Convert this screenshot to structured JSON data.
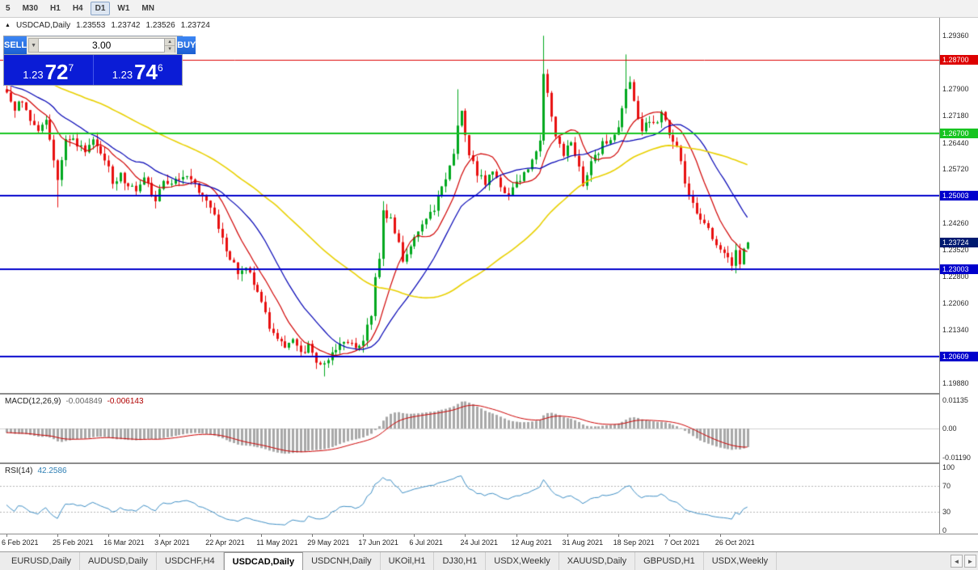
{
  "toolbar": {
    "timeframes": [
      "5",
      "M30",
      "H1",
      "H4",
      "D1",
      "W1",
      "MN"
    ],
    "active": "D1"
  },
  "chart": {
    "symbol_line": {
      "symbol": "USDCAD,Daily",
      "open": "1.23553",
      "high": "1.23742",
      "low": "1.23526",
      "close": "1.23724"
    },
    "trade_panel": {
      "sell_label": "SELL",
      "buy_label": "BUY",
      "volume": "3.00",
      "sell_price": {
        "small": "1.23",
        "big": "72",
        "sup": "7"
      },
      "buy_price": {
        "small": "1.23",
        "big": "74",
        "sup": "6"
      }
    }
  },
  "indicators": {
    "macd": {
      "label": "MACD(12,26,9)",
      "value_main": "-0.004849",
      "value_signal": "-0.006143",
      "axis_labels": [
        "0.01135",
        "0.00",
        "-0.01190"
      ]
    },
    "rsi": {
      "label": "RSI(14)",
      "value": "42.2586",
      "axis_labels": [
        "100",
        "70",
        "30",
        "0"
      ],
      "levels": [
        70,
        30
      ]
    }
  },
  "chart_data": {
    "type": "candlestick",
    "symbol": "USDCAD",
    "timeframe": "Daily",
    "visible_ohlc": {
      "open": 1.23553,
      "high": 1.23742,
      "low": 1.23526,
      "close": 1.23724
    },
    "n_candles": 190,
    "first_open": 1.279,
    "last_close": 1.23724,
    "pre_trend": {
      "start": 1.292,
      "end": 1.2785,
      "count": 60
    },
    "price_anchors": [
      [
        0,
        1.2775
      ],
      [
        2,
        1.274
      ],
      [
        4,
        1.2755
      ],
      [
        6,
        1.27
      ],
      [
        8,
        1.2668
      ],
      [
        10,
        1.27
      ],
      [
        11,
        1.2645
      ],
      [
        12,
        1.259
      ],
      [
        13,
        1.2545
      ],
      [
        14,
        1.2605
      ],
      [
        15,
        1.265
      ],
      [
        16,
        1.2662
      ],
      [
        18,
        1.2645
      ],
      [
        20,
        1.2608
      ],
      [
        22,
        1.2648
      ],
      [
        24,
        1.2615
      ],
      [
        26,
        1.2575
      ],
      [
        27,
        1.2535
      ],
      [
        29,
        1.2555
      ],
      [
        31,
        1.2528
      ],
      [
        33,
        1.2512
      ],
      [
        35,
        1.2545
      ],
      [
        37,
        1.2505
      ],
      [
        38,
        1.2478
      ],
      [
        40,
        1.2548
      ],
      [
        42,
        1.2535
      ],
      [
        44,
        1.2555
      ],
      [
        46,
        1.2562
      ],
      [
        48,
        1.253
      ],
      [
        50,
        1.2498
      ],
      [
        52,
        1.2478
      ],
      [
        53,
        1.2455
      ],
      [
        55,
        1.2385
      ],
      [
        57,
        1.2322
      ],
      [
        59,
        1.2295
      ],
      [
        61,
        1.2312
      ],
      [
        63,
        1.2255
      ],
      [
        65,
        1.2205
      ],
      [
        67,
        1.2138
      ],
      [
        69,
        1.2118
      ],
      [
        71,
        1.2092
      ],
      [
        73,
        1.2108
      ],
      [
        75,
        1.2068
      ],
      [
        77,
        1.2085
      ],
      [
        79,
        1.2055
      ],
      [
        81,
        1.2032
      ],
      [
        83,
        1.2062
      ],
      [
        85,
        1.2088
      ],
      [
        87,
        1.2108
      ],
      [
        89,
        1.2082
      ],
      [
        91,
        1.21
      ],
      [
        93,
        1.2175
      ],
      [
        94,
        1.2275
      ],
      [
        95,
        1.233
      ],
      [
        96,
        1.2455
      ],
      [
        98,
        1.2432
      ],
      [
        100,
        1.2372
      ],
      [
        101,
        1.2318
      ],
      [
        103,
        1.236
      ],
      [
        105,
        1.2398
      ],
      [
        107,
        1.2432
      ],
      [
        109,
        1.2465
      ],
      [
        111,
        1.253
      ],
      [
        113,
        1.2575
      ],
      [
        114,
        1.2618
      ],
      [
        115,
        1.2688
      ],
      [
        116,
        1.2725
      ],
      [
        117,
        1.2655
      ],
      [
        118,
        1.2612
      ],
      [
        120,
        1.2562
      ],
      [
        122,
        1.2535
      ],
      [
        124,
        1.2572
      ],
      [
        126,
        1.2525
      ],
      [
        128,
        1.2502
      ],
      [
        130,
        1.2535
      ],
      [
        132,
        1.2562
      ],
      [
        134,
        1.2598
      ],
      [
        136,
        1.265
      ],
      [
        137,
        1.2822
      ],
      [
        138,
        1.2788
      ],
      [
        139,
        1.2715
      ],
      [
        140,
        1.2655
      ],
      [
        142,
        1.2612
      ],
      [
        144,
        1.2642
      ],
      [
        146,
        1.2585
      ],
      [
        147,
        1.2535
      ],
      [
        148,
        1.2565
      ],
      [
        150,
        1.2605
      ],
      [
        152,
        1.2638
      ],
      [
        154,
        1.2662
      ],
      [
        156,
        1.2692
      ],
      [
        158,
        1.2782
      ],
      [
        159,
        1.2808
      ],
      [
        160,
        1.2748
      ],
      [
        161,
        1.2702
      ],
      [
        162,
        1.2665
      ],
      [
        163,
        1.2705
      ],
      [
        165,
        1.2692
      ],
      [
        167,
        1.2722
      ],
      [
        169,
        1.2672
      ],
      [
        171,
        1.2635
      ],
      [
        172,
        1.2592
      ],
      [
        174,
        1.2492
      ],
      [
        176,
        1.2462
      ],
      [
        178,
        1.2422
      ],
      [
        180,
        1.2382
      ],
      [
        182,
        1.2352
      ],
      [
        184,
        1.2332
      ],
      [
        185,
        1.2312
      ],
      [
        186,
        1.2342
      ],
      [
        187,
        1.2322
      ],
      [
        188,
        1.23553
      ],
      [
        189,
        1.23724
      ]
    ],
    "wick_overrides": [
      {
        "i": 13,
        "low": 1.2468
      },
      {
        "i": 38,
        "low": 1.2465
      },
      {
        "i": 81,
        "low": 1.2007
      },
      {
        "i": 96,
        "high": 1.2485
      },
      {
        "i": 115,
        "high": 1.279
      },
      {
        "i": 137,
        "high": 1.2936
      },
      {
        "i": 158,
        "high": 1.2885
      },
      {
        "i": 186,
        "low": 1.2288
      },
      {
        "i": 189,
        "high": 1.23742,
        "low": 1.23526
      }
    ],
    "y_axis": {
      "max": 1.2985,
      "min": 1.1962,
      "tick_labels": [
        "1.29360",
        "1.28640",
        "1.27900",
        "1.27180",
        "1.26440",
        "1.25720",
        "1.25000",
        "1.24260",
        "1.23520",
        "1.22800",
        "1.22060",
        "1.21340",
        "1.20600",
        "1.19880"
      ]
    },
    "h_lines": [
      {
        "price": 1.287,
        "label": "1.28700",
        "color": "#dd0000",
        "width": 1
      },
      {
        "price": 1.267,
        "label": "1.26700",
        "color": "#17c421",
        "width": 2
      },
      {
        "price": 1.25003,
        "label": "1.25003",
        "color": "#0000cc",
        "width": 2
      },
      {
        "price": 1.23003,
        "label": "1.23003",
        "color": "#0000cc",
        "width": 2
      },
      {
        "price": 1.20609,
        "label": "1.20609",
        "color": "#0000cc",
        "width": 2
      }
    ],
    "current_price": {
      "value": 1.23724,
      "label": "1.23724",
      "badge_color": "#001a70"
    },
    "moving_averages": [
      {
        "period": 10,
        "color": "#d00000"
      },
      {
        "period": 21,
        "color": "#0000b4"
      },
      {
        "period": 55,
        "color": "#e8d000"
      }
    ],
    "x_labels": [
      "6 Feb 2021",
      "25 Feb 2021",
      "16 Mar 2021",
      "3 Apr 2021",
      "22 Apr 2021",
      "11 May 2021",
      "29 May 2021",
      "17 Jun 2021",
      "6 Jul 2021",
      "24 Jul 2021",
      "12 Aug 2021",
      "31 Aug 2021",
      "18 Sep 2021",
      "7 Oct 2021",
      "26 Oct 2021"
    ],
    "candles_per_label": 13
  },
  "tabs": {
    "items": [
      "EURUSD,Daily",
      "AUDUSD,Daily",
      "USDCHF,H4",
      "USDCAD,Daily",
      "USDCNH,Daily",
      "UKOil,H1",
      "DJ30,H1",
      "USDX,Weekly",
      "XAUUSD,Daily",
      "GBPUSD,H1",
      "USDX,Weekly"
    ],
    "active_index": 3,
    "scroll_left_icon": "◄",
    "scroll_right_icon": "►"
  }
}
